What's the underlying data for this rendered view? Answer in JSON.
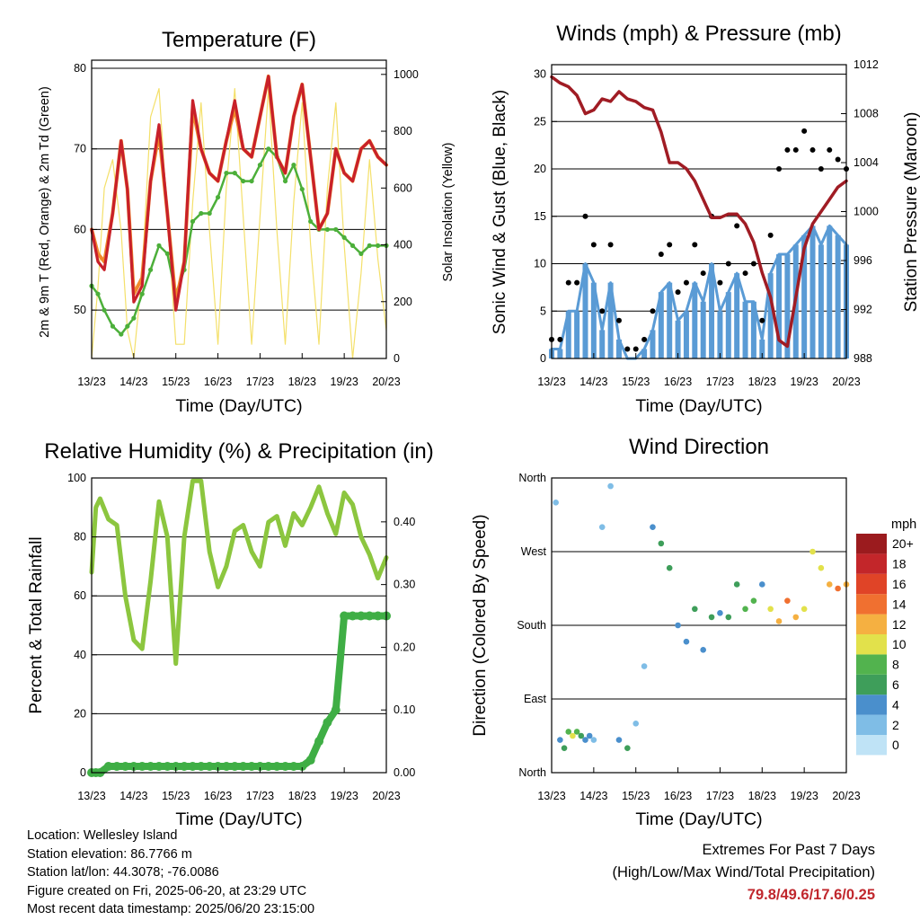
{
  "time_ticks": [
    "13/23",
    "14/23",
    "15/23",
    "16/23",
    "17/23",
    "18/23",
    "19/23",
    "20/23"
  ],
  "speed_legend": {
    "unit": "mph",
    "labels": [
      "0",
      "2",
      "4",
      "6",
      "8",
      "10",
      "12",
      "14",
      "16",
      "18",
      "20+"
    ],
    "colors": [
      "#bfe3f6",
      "#7fbde6",
      "#4a8fcc",
      "#3e9e5a",
      "#52b34e",
      "#e2e14b",
      "#f5b041",
      "#f07030",
      "#e04427",
      "#c3262a",
      "#9b1b1e"
    ]
  },
  "station": {
    "location": "Location: Wellesley Island",
    "elevation": "Station elevation: 86.7766 m",
    "latlon": "Station lat/lon: 44.3078; -76.0086",
    "created": "Figure created on Fri, 2025-06-20, at 23:29 UTC",
    "recent": "Most recent data timestamp: 2025/06/20 23:15:00"
  },
  "extremes": {
    "title": "Extremes For Past 7 Days",
    "subtitle": "(High/Low/Max Wind/Total Precipitation)",
    "values": "79.8/49.6/17.6/0.25"
  },
  "chart_data": [
    {
      "type": "line",
      "title": "Temperature (F)",
      "xlabel": "Time (Day/UTC)",
      "ylabel": "2m & 9m T (Red, Orange) & 2m Td (Green)",
      "ylabel_right": "Solar Insolation (Yellow)",
      "ylim": [
        44,
        81
      ],
      "yticks": [
        50,
        60,
        70,
        80
      ],
      "ylim_right": [
        0,
        1050
      ],
      "yticks_right": [
        0,
        200,
        400,
        600,
        800,
        1000
      ],
      "x": [
        0,
        0.15,
        0.3,
        0.5,
        0.7,
        0.85,
        1.0,
        1.2,
        1.4,
        1.6,
        1.8,
        2.0,
        2.2,
        2.4,
        2.6,
        2.8,
        3.0,
        3.2,
        3.4,
        3.6,
        3.8,
        4.0,
        4.2,
        4.4,
        4.6,
        4.8,
        5.0,
        5.2,
        5.4,
        5.6,
        5.8,
        6.0,
        6.2,
        6.4,
        6.6,
        6.8,
        7.0
      ],
      "series": [
        {
          "values": [
            60,
            56,
            55,
            62,
            71,
            65,
            51,
            53,
            66,
            73,
            62,
            50,
            56,
            76,
            70,
            67,
            66,
            71,
            76,
            70,
            69,
            74,
            79,
            69,
            67,
            74,
            78,
            69,
            60,
            62,
            70,
            67,
            66,
            70,
            71,
            69,
            68
          ]
        },
        {
          "values": [
            60,
            57,
            56,
            62,
            71,
            65,
            52,
            54,
            66,
            72,
            62,
            51,
            56,
            75,
            70,
            67,
            66,
            71,
            75,
            70,
            69,
            74,
            79,
            69,
            67,
            74,
            78,
            69,
            60,
            62,
            70,
            67,
            66,
            70,
            71,
            69,
            68
          ]
        },
        {
          "values": [
            53,
            52,
            50,
            48,
            47,
            48,
            49,
            52,
            55,
            58,
            57,
            52,
            55,
            61,
            62,
            62,
            64,
            67,
            67,
            66,
            66,
            68,
            70,
            69,
            66,
            68,
            65,
            61,
            60,
            60,
            60,
            59,
            58,
            57,
            58,
            58,
            58
          ]
        },
        {
          "values": [
            0,
            250,
            600,
            700,
            450,
            100,
            0,
            300,
            850,
            950,
            500,
            50,
            50,
            550,
            900,
            450,
            50,
            600,
            950,
            500,
            50,
            500,
            950,
            450,
            50,
            550,
            900,
            400,
            50,
            600,
            900,
            400,
            0,
            300,
            700,
            350,
            100
          ]
        }
      ]
    },
    {
      "type": "scatter",
      "title": "Winds (mph) & Pressure (mb)",
      "xlabel": "Time (Day/UTC)",
      "ylabel": "Sonic Wind & Gust (Blue, Black)",
      "ylabel_right": "Station Pressure (Maroon)",
      "ylim": [
        0,
        31
      ],
      "yticks": [
        0,
        5,
        10,
        15,
        20,
        25,
        30
      ],
      "ylim_right": [
        988,
        1012
      ],
      "yticks_right": [
        988,
        992,
        996,
        1000,
        1004,
        1008,
        1012
      ],
      "x": [
        0,
        0.2,
        0.4,
        0.6,
        0.8,
        1.0,
        1.2,
        1.4,
        1.6,
        1.8,
        2.0,
        2.2,
        2.4,
        2.6,
        2.8,
        3.0,
        3.2,
        3.4,
        3.6,
        3.8,
        4.0,
        4.2,
        4.4,
        4.6,
        4.8,
        5.0,
        5.2,
        5.4,
        5.6,
        5.8,
        6.0,
        6.2,
        6.4,
        6.6,
        6.8,
        7.0
      ],
      "series": [
        {
          "values": [
            1,
            1,
            5,
            5,
            10,
            8,
            3,
            8,
            2,
            0,
            0,
            1,
            3,
            7,
            8,
            4,
            5,
            8,
            6,
            10,
            5,
            7,
            9,
            6,
            6,
            2,
            9,
            11,
            11,
            12,
            13,
            14,
            12,
            14,
            13,
            12
          ]
        },
        {
          "values": [
            2,
            2,
            8,
            8,
            15,
            12,
            5,
            12,
            4,
            1,
            1,
            2,
            5,
            11,
            12,
            7,
            8,
            12,
            9,
            15,
            8,
            10,
            14,
            9,
            10,
            4,
            13,
            20,
            22,
            22,
            24,
            22,
            20,
            22,
            21,
            20
          ]
        },
        {
          "values": [
            1011,
            1010.5,
            1010.2,
            1009.5,
            1008.0,
            1008.3,
            1009.2,
            1009.0,
            1009.8,
            1009.2,
            1009.0,
            1008.5,
            1008.3,
            1006.5,
            1004.0,
            1004.0,
            1003.5,
            1002.5,
            1001.0,
            999.5,
            999.5,
            999.8,
            999.8,
            999.0,
            997.5,
            995.0,
            993.0,
            989.5,
            989.0,
            993.0,
            997.0,
            999.0,
            1000.0,
            1001.0,
            1002.0,
            1002.5
          ]
        }
      ]
    },
    {
      "type": "line",
      "title": "Relative Humidity (%) & Precipitation (in)",
      "xlabel": "Time (Day/UTC)",
      "ylabel": "Percent & Total Rainfall",
      "ylim": [
        0,
        100
      ],
      "yticks": [
        0,
        20,
        40,
        60,
        80,
        100
      ],
      "ylim_right": [
        0,
        0.47
      ],
      "yticks_right": [
        0.0,
        0.1,
        0.2,
        0.3,
        0.4
      ],
      "x": [
        0,
        0.1,
        0.2,
        0.4,
        0.6,
        0.8,
        1.0,
        1.2,
        1.4,
        1.6,
        1.8,
        2.0,
        2.2,
        2.4,
        2.6,
        2.8,
        3.0,
        3.2,
        3.4,
        3.6,
        3.8,
        4.0,
        4.2,
        4.4,
        4.6,
        4.8,
        5.0,
        5.2,
        5.4,
        5.6,
        5.8,
        6.0,
        6.2,
        6.4,
        6.6,
        6.8,
        7.0
      ],
      "series": [
        {
          "values": [
            68,
            90,
            93,
            86,
            84,
            60,
            45,
            42,
            65,
            92,
            80,
            37,
            80,
            99,
            99,
            75,
            63,
            70,
            82,
            84,
            75,
            70,
            85,
            87,
            77,
            88,
            84,
            90,
            97,
            88,
            81,
            95,
            91,
            80,
            74,
            66,
            73
          ]
        },
        {
          "values": [
            0,
            0,
            0,
            0.01,
            0.01,
            0.01,
            0.01,
            0.01,
            0.01,
            0.01,
            0.01,
            0.01,
            0.01,
            0.01,
            0.01,
            0.01,
            0.01,
            0.01,
            0.01,
            0.01,
            0.01,
            0.01,
            0.01,
            0.01,
            0.01,
            0.01,
            0.01,
            0.02,
            0.05,
            0.08,
            0.1,
            0.25,
            0.25,
            0.25,
            0.25,
            0.25,
            0.25
          ]
        }
      ]
    },
    {
      "type": "scatter",
      "title": "Wind Direction",
      "xlabel": "Time (Day/UTC)",
      "ylabel": "Direction (Colored By Speed)",
      "ylim": [
        0,
        360
      ],
      "yticks": [
        0,
        90,
        180,
        270,
        360
      ],
      "ytick_labels": [
        "North",
        "East",
        "South",
        "West",
        "North"
      ],
      "x": [
        0.1,
        0.2,
        0.3,
        0.4,
        0.5,
        0.6,
        0.7,
        0.8,
        0.9,
        1.0,
        1.2,
        1.4,
        1.6,
        1.8,
        2.0,
        2.2,
        2.4,
        2.6,
        2.8,
        3.0,
        3.2,
        3.4,
        3.6,
        3.8,
        4.0,
        4.2,
        4.4,
        4.6,
        4.8,
        5.0,
        5.2,
        5.4,
        5.6,
        5.8,
        6.0,
        6.2,
        6.4,
        6.6,
        6.8,
        7.0
      ],
      "values": [
        330,
        40,
        30,
        50,
        45,
        50,
        45,
        40,
        45,
        40,
        300,
        350,
        40,
        30,
        60,
        130,
        300,
        280,
        250,
        180,
        160,
        200,
        150,
        190,
        195,
        190,
        230,
        200,
        210,
        230,
        200,
        185,
        210,
        190,
        200,
        270,
        250,
        230,
        225,
        230
      ],
      "speeds": [
        2,
        4,
        6,
        8,
        9,
        8,
        6,
        4,
        3,
        2,
        1,
        1,
        4,
        6,
        2,
        2,
        3,
        6,
        6,
        4,
        4,
        5,
        4,
        6,
        4,
        5,
        6,
        8,
        7,
        3,
        10,
        12,
        13,
        12,
        9,
        10,
        9,
        12,
        13,
        12
      ]
    }
  ]
}
